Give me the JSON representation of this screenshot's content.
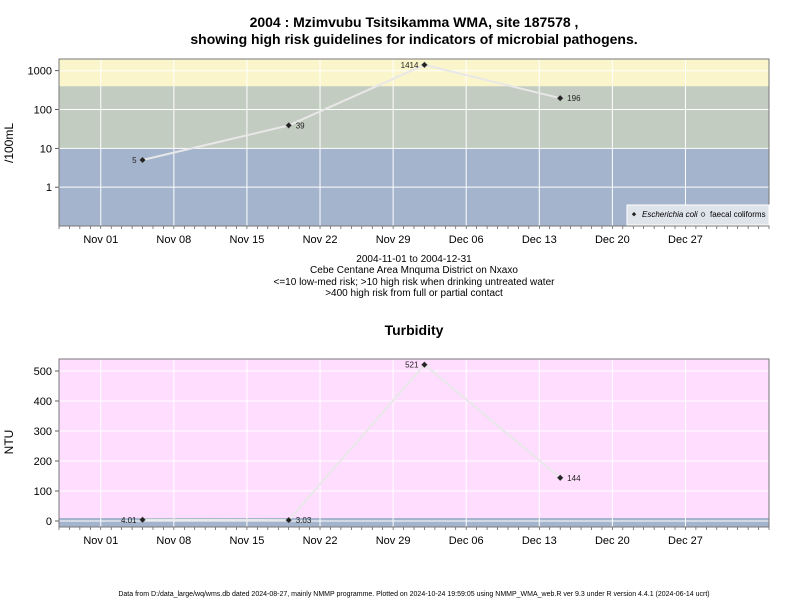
{
  "chart_data": [
    {
      "type": "line",
      "title_line1": "2004 : Mzimvubu Tsitsikamma WMA, site 187578 ,",
      "title_line2": "showing high risk guidelines for indicators of microbial pathogens.",
      "ylabel": "/100mL",
      "yscale": "log",
      "ylim": [
        0.1,
        2000
      ],
      "yticks": [
        {
          "value": 1,
          "label": "1"
        },
        {
          "value": 10,
          "label": "10"
        },
        {
          "value": 100,
          "label": "100"
        },
        {
          "value": 1000,
          "label": "1000"
        }
      ],
      "xlim": [
        "2004-10-28",
        "2005-01-04"
      ],
      "xticks": [
        "Nov 01",
        "Nov 08",
        "Nov 15",
        "Nov 22",
        "Nov 29",
        "Dec 06",
        "Dec 13",
        "Dec 20",
        "Dec 27"
      ],
      "xtick_dates": [
        "2004-11-01",
        "2004-11-08",
        "2004-11-15",
        "2004-11-22",
        "2004-11-29",
        "2004-12-06",
        "2004-12-13",
        "2004-12-20",
        "2004-12-27"
      ],
      "bands": [
        {
          "from": 0.1,
          "to": 10,
          "color": "#a3b4cc"
        },
        {
          "from": 10,
          "to": 400,
          "color": "#c3ccc0"
        },
        {
          "from": 400,
          "to": 2000,
          "color": "#fbf5cb"
        }
      ],
      "series": [
        {
          "name": "Escherichia coli",
          "x": [
            "2004-11-05",
            "2004-11-19",
            "2004-12-02",
            "2004-12-15"
          ],
          "values": [
            5,
            39,
            1414,
            196
          ],
          "labels": [
            "5",
            "39",
            "1414",
            "196"
          ]
        }
      ],
      "legend": {
        "placement": "bottom-right",
        "entries": [
          "Escherichia coli",
          "faecal coliforms"
        ]
      },
      "subtitle_lines": [
        "2004-11-01 to 2004-12-31",
        "Cebe Centane Area Mnquma District on Nxaxo",
        "<=10 low-med risk; >10 high risk when drinking untreated water",
        ">400 high risk from full or partial contact"
      ]
    },
    {
      "type": "line",
      "title": "Turbidity",
      "ylabel": "NTU",
      "ylim": [
        -20,
        540
      ],
      "yticks": [
        {
          "value": 0,
          "label": "0"
        },
        {
          "value": 100,
          "label": "100"
        },
        {
          "value": 200,
          "label": "200"
        },
        {
          "value": 300,
          "label": "300"
        },
        {
          "value": 400,
          "label": "400"
        },
        {
          "value": 500,
          "label": "500"
        }
      ],
      "xlim": [
        "2004-10-28",
        "2005-01-04"
      ],
      "xticks": [
        "Nov 01",
        "Nov 08",
        "Nov 15",
        "Nov 22",
        "Nov 29",
        "Dec 06",
        "Dec 13",
        "Dec 20",
        "Dec 27"
      ],
      "xtick_dates": [
        "2004-11-01",
        "2004-11-08",
        "2004-11-15",
        "2004-11-22",
        "2004-11-29",
        "2004-12-06",
        "2004-12-13",
        "2004-12-20",
        "2004-12-27"
      ],
      "bands": [
        {
          "from": -20,
          "to": 10,
          "color": "#a3b4cc"
        },
        {
          "from": 10,
          "to": 540,
          "color": "#ffddff"
        }
      ],
      "series": [
        {
          "x": [
            "2004-11-05",
            "2004-11-19",
            "2004-12-02",
            "2004-12-15"
          ],
          "values": [
            4.01,
            3.03,
            521,
            144
          ],
          "labels": [
            "4.01",
            "3.03",
            "521",
            "144"
          ]
        }
      ]
    }
  ],
  "footer": "Data from D:/data_large/wq/wms.db dated 2024-08-27, mainly NMMP programme. Plotted on 2024-10-24 19:59:05 using NMMP_WMA_web.R ver 9.3 under R version 4.4.1 (2024-06-14 ucrt)"
}
